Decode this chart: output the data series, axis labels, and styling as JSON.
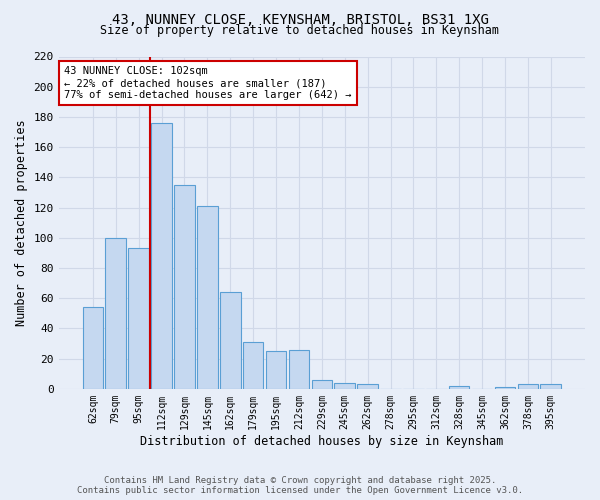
{
  "title_line1": "43, NUNNEY CLOSE, KEYNSHAM, BRISTOL, BS31 1XG",
  "title_line2": "Size of property relative to detached houses in Keynsham",
  "xlabel": "Distribution of detached houses by size in Keynsham",
  "ylabel": "Number of detached properties",
  "categories": [
    "62sqm",
    "79sqm",
    "95sqm",
    "112sqm",
    "129sqm",
    "145sqm",
    "162sqm",
    "179sqm",
    "195sqm",
    "212sqm",
    "229sqm",
    "245sqm",
    "262sqm",
    "278sqm",
    "295sqm",
    "312sqm",
    "328sqm",
    "345sqm",
    "362sqm",
    "378sqm",
    "395sqm"
  ],
  "values": [
    54,
    100,
    93,
    176,
    135,
    121,
    64,
    31,
    25,
    26,
    6,
    4,
    3,
    0,
    0,
    0,
    2,
    0,
    1,
    3,
    3
  ],
  "bar_color": "#c5d8f0",
  "bar_edge_color": "#5a9fd4",
  "background_color": "#e8eef8",
  "grid_color": "#d0d8e8",
  "red_line_x": 2.5,
  "annotation_text": "43 NUNNEY CLOSE: 102sqm\n← 22% of detached houses are smaller (187)\n77% of semi-detached houses are larger (642) →",
  "annotation_box_color": "#ffffff",
  "annotation_border_color": "#cc0000",
  "footer_line1": "Contains HM Land Registry data © Crown copyright and database right 2025.",
  "footer_line2": "Contains public sector information licensed under the Open Government Licence v3.0.",
  "ylim": [
    0,
    220
  ],
  "yticks": [
    0,
    20,
    40,
    60,
    80,
    100,
    120,
    140,
    160,
    180,
    200,
    220
  ]
}
